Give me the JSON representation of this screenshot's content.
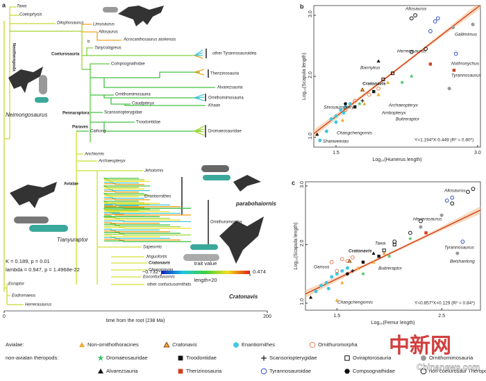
{
  "tree": {
    "panel": "a",
    "labels": [
      "Tawa",
      "Coelophysis",
      "Dilophosaurus",
      "Limusaurus",
      "Allosaurus",
      "Acrocanthosaurus atokensis",
      "b",
      "Tanycolagreus",
      "other Tyrannosauroidea",
      "Coelurosauria",
      "Compsognathidae",
      "Therizinosauria",
      "Alvarezsauria",
      "Ornithomimosauria",
      "Ornithomimosauria",
      "Caudipteryx",
      "Khaan",
      "Scansoriopterygidae",
      "Pennaraptora",
      "Troodontidae",
      "Paraves",
      "Caihong",
      "Dromaeosauridae",
      "Anchiornis",
      "Archaeopteryx",
      "Jeholornis",
      "Avialae",
      "Enantiornithes",
      "parabohaiornis",
      "Ornithuromorpha",
      "Sapeornis",
      "Jinguofortis",
      "Cratonavis",
      "Chongmingia",
      "Eoconfuciusornis",
      "other confuciusornithids",
      "Cratonavis",
      "Neimongosaurus",
      "Tianyuraptor",
      "Eoraptor",
      "Eodromaeus",
      "Herrerasaurus",
      "Neotheropoda"
    ],
    "stats": [
      "K = 0.189, p = 0.01",
      "lambda = 0.947, p = 1.4968e-22"
    ],
    "colorbar": {
      "label": "trait value",
      "min": {
        "value": -0.732,
        "label": "−0.732"
      },
      "max": 0.474,
      "note": "length=20"
    },
    "xlabel": "time from the root (238 Ma)",
    "xlim": [
      0,
      200
    ],
    "xticks": [
      0,
      200
    ]
  },
  "chart_data": [
    {
      "type": "scatter",
      "panel": "b",
      "xlabel": "Log₁₀(Humerus length)",
      "ylabel": "Log₁₀(Scapula length)",
      "xlim": [
        1.265,
        3.03
      ],
      "ylim": [
        0.84,
        3.16
      ],
      "xticks": [
        1.5,
        {
          "value": 3,
          "label": "3.0"
        }
      ],
      "yticks": [
        {
          "value": 1,
          "label": "1.0"
        },
        {
          "value": 2,
          "label": "2.0"
        },
        {
          "value": 3,
          "label": "3.0"
        }
      ],
      "regression": {
        "label": "Y=1.194*X-0.449  (R² = 0.80*)",
        "slope": 1.194,
        "intercept": -0.449
      },
      "annotations": [
        "Allosaurus",
        "Gallimimus",
        "Herrerasaurus",
        "Nothronychus",
        "Tyrannosaurus",
        "Bannykus",
        "Cratonavis",
        "Sinosauropteryx",
        "Archaeopteryx",
        "Ambopteryx",
        "Buitreraptor",
        "Changchengornis",
        "Shanweiniao"
      ],
      "series": [
        {
          "name": "Non-ornithothoracines",
          "marker": "triangle",
          "filled": true,
          "color": "#f0a830",
          "x": [
            1.57,
            1.8,
            1.95,
            2.05
          ],
          "y": [
            1.28,
            1.55,
            1.7,
            1.9
          ]
        },
        {
          "name": "Cratonavis",
          "marker": "triangle",
          "filled": true,
          "color": "#f0a830",
          "edge": "#8b4513",
          "x": [
            1.78
          ],
          "y": [
            1.78
          ]
        },
        {
          "name": "Enantiornithes",
          "marker": "circle",
          "filled": true,
          "color": "#40c8e0",
          "x": [
            1.33,
            1.4,
            1.45,
            1.5,
            1.55,
            1.6,
            1.65,
            1.5,
            1.58
          ],
          "y": [
            0.95,
            1.1,
            1.3,
            1.35,
            1.45,
            1.5,
            1.55,
            1.25,
            1.4
          ]
        },
        {
          "name": "Ornithuromorpha",
          "marker": "circle",
          "filled": false,
          "color": "#e08050",
          "x": [
            1.6,
            1.7,
            1.85,
            1.95
          ],
          "y": [
            1.45,
            1.6,
            1.7,
            1.8
          ]
        },
        {
          "name": "Dromaeosauridae",
          "marker": "star",
          "filled": true,
          "color": "#40c060",
          "x": [
            1.75,
            2.2,
            2.3
          ],
          "y": [
            1.55,
            1.9,
            2.0
          ]
        },
        {
          "name": "Troodontidae",
          "marker": "square",
          "filled": true,
          "color": "#111111",
          "x": [
            1.7,
            1.9
          ],
          "y": [
            1.5,
            1.75
          ]
        },
        {
          "name": "Scansoriopterygidae",
          "marker": "plus",
          "filled": true,
          "color": "#111111",
          "x": [
            1.78
          ],
          "y": [
            1.6
          ]
        },
        {
          "name": "Oviraptorosauria",
          "marker": "square",
          "filled": false,
          "color": "#111111",
          "x": [
            2.0,
            2.1
          ],
          "y": [
            1.95,
            2.05
          ]
        },
        {
          "name": "Ornithomimosauria",
          "marker": "circle",
          "filled": true,
          "color": "#999999",
          "x": [
            2.74,
            2.95,
            2.7
          ],
          "y": [
            2.8,
            2.85,
            1.8
          ]
        },
        {
          "name": "Alvarezsauria",
          "marker": "triangle",
          "filled": true,
          "color": "#111111",
          "x": [
            1.95,
            1.3
          ],
          "y": [
            2.25,
            1.05
          ]
        },
        {
          "name": "Therizinosauria",
          "marker": "square",
          "filled": true,
          "color": "#d04020",
          "x": [
            2.75,
            2.5
          ],
          "y": [
            2.1,
            2.2
          ]
        },
        {
          "name": "Tyrannosauroidae",
          "marker": "circle",
          "filled": false,
          "color": "#3050c0",
          "x": [
            2.5,
            2.55,
            2.77,
            2.58
          ],
          "y": [
            2.74,
            2.9,
            2.37,
            2.95
          ]
        },
        {
          "name": "Compsognathidae",
          "marker": "hexagon",
          "filled": true,
          "color": "#111111",
          "x": [
            1.6
          ],
          "y": [
            1.55
          ]
        },
        {
          "name": "non-coelurosaur Theropod",
          "marker": "circle",
          "filled": false,
          "color": "#111111",
          "x": [
            2.34,
            2.3,
            2.45,
            2.3
          ],
          "y": [
            3.0,
            2.95,
            2.45,
            2.4
          ]
        }
      ]
    },
    {
      "type": "scatter",
      "panel": "c",
      "xlabel": "Log₁₀(Femur length)",
      "ylabel": "Log₁₀(Scapula length)",
      "xlim": [
        1.2,
        2.87
      ],
      "ylim": [
        0.88,
        3.07
      ],
      "xticks": [
        1.5,
        2.5
      ],
      "yticks": [
        {
          "value": 1,
          "label": "1.0"
        },
        {
          "value": 2,
          "label": "2.0"
        },
        {
          "value": 3,
          "label": "3.0"
        }
      ],
      "regression": {
        "label": "Y=0.857*X+0.129  (R² = 0.84*)",
        "slope": 0.857,
        "intercept": 0.129
      },
      "annotations": [
        "Allosaurus",
        "Herrerasaurus",
        "Tawa",
        "Cratonavis",
        "Gansus",
        "Buitreraptor",
        "Tyrannosaurus",
        "Beishanlong",
        "Changchengornis"
      ],
      "series": [
        {
          "name": "Non-ornithothoracines",
          "marker": "triangle",
          "filled": true,
          "color": "#f0a830",
          "x": [
            1.5,
            1.55,
            1.7,
            1.85,
            1.95
          ],
          "y": [
            1.05,
            1.35,
            1.6,
            1.7,
            1.85
          ]
        },
        {
          "name": "Cratonavis",
          "marker": "triangle",
          "filled": true,
          "color": "#f0a830",
          "edge": "#8b4513",
          "x": [
            1.62
          ],
          "y": [
            1.72
          ]
        },
        {
          "name": "Enantiornithes",
          "marker": "circle",
          "filled": true,
          "color": "#40c8e0",
          "x": [
            1.3,
            1.35,
            1.4,
            1.42,
            1.45,
            1.5,
            1.55,
            1.6
          ],
          "y": [
            1.2,
            1.3,
            1.35,
            1.25,
            1.45,
            1.5,
            1.55,
            1.6
          ]
        },
        {
          "name": "Ornithuromorpha",
          "marker": "circle",
          "filled": false,
          "color": "#e08050",
          "x": [
            1.45,
            1.5,
            1.55,
            1.6,
            1.65
          ],
          "y": [
            1.7,
            1.55,
            1.75,
            1.72,
            1.78
          ]
        },
        {
          "name": "Dromaeosauridae",
          "marker": "star",
          "filled": true,
          "color": "#40c060",
          "x": [
            1.75,
            2.0,
            2.2
          ],
          "y": [
            1.5,
            1.8,
            2.1
          ]
        },
        {
          "name": "Troodontidae",
          "marker": "square",
          "filled": true,
          "color": "#111111",
          "x": [
            1.75,
            1.9
          ],
          "y": [
            1.7,
            1.8
          ]
        },
        {
          "name": "Scansoriopterygidae",
          "marker": "plus",
          "filled": true,
          "color": "#111111",
          "x": [
            1.65
          ],
          "y": [
            1.55
          ]
        },
        {
          "name": "Oviraptorosauria",
          "marker": "square",
          "filled": false,
          "color": "#111111",
          "x": [
            1.95,
            2.05
          ],
          "y": [
            1.9,
            2.0
          ]
        },
        {
          "name": "Ornithomimosauria",
          "marker": "circle",
          "filled": true,
          "color": "#999999",
          "x": [
            2.3,
            2.5,
            2.65
          ],
          "y": [
            2.3,
            2.5,
            1.85
          ]
        },
        {
          "name": "Alvarezsauria",
          "marker": "triangle",
          "filled": true,
          "color": "#111111",
          "x": [
            1.85,
            1.25
          ],
          "y": [
            1.85,
            1.1
          ]
        },
        {
          "name": "Therizinosauria",
          "marker": "square",
          "filled": true,
          "color": "#d04020",
          "x": [
            2.35
          ],
          "y": [
            2.2
          ]
        },
        {
          "name": "Tyrannosauroidae",
          "marker": "circle",
          "filled": false,
          "color": "#3050c0",
          "x": [
            2.55,
            2.7,
            2.6
          ],
          "y": [
            2.75,
            2.05,
            2.8
          ]
        },
        {
          "name": "Compsognathidae",
          "marker": "hexagon",
          "filled": true,
          "color": "#111111",
          "x": [
            1.6
          ],
          "y": [
            1.5
          ]
        },
        {
          "name": "non-coelurosaur Theropod",
          "marker": "circle",
          "filled": false,
          "color": "#111111",
          "x": [
            2.05,
            2.2,
            2.3,
            2.6,
            2.75,
            2.8
          ],
          "y": [
            2.05,
            2.2,
            2.4,
            2.7,
            2.9,
            2.95
          ]
        }
      ]
    }
  ],
  "legend": {
    "avialae": "Avialae:",
    "theropods": "non-avialan theropods:"
  },
  "watermark": {
    "logo": "中新网",
    "site": "Chinanews.com"
  }
}
